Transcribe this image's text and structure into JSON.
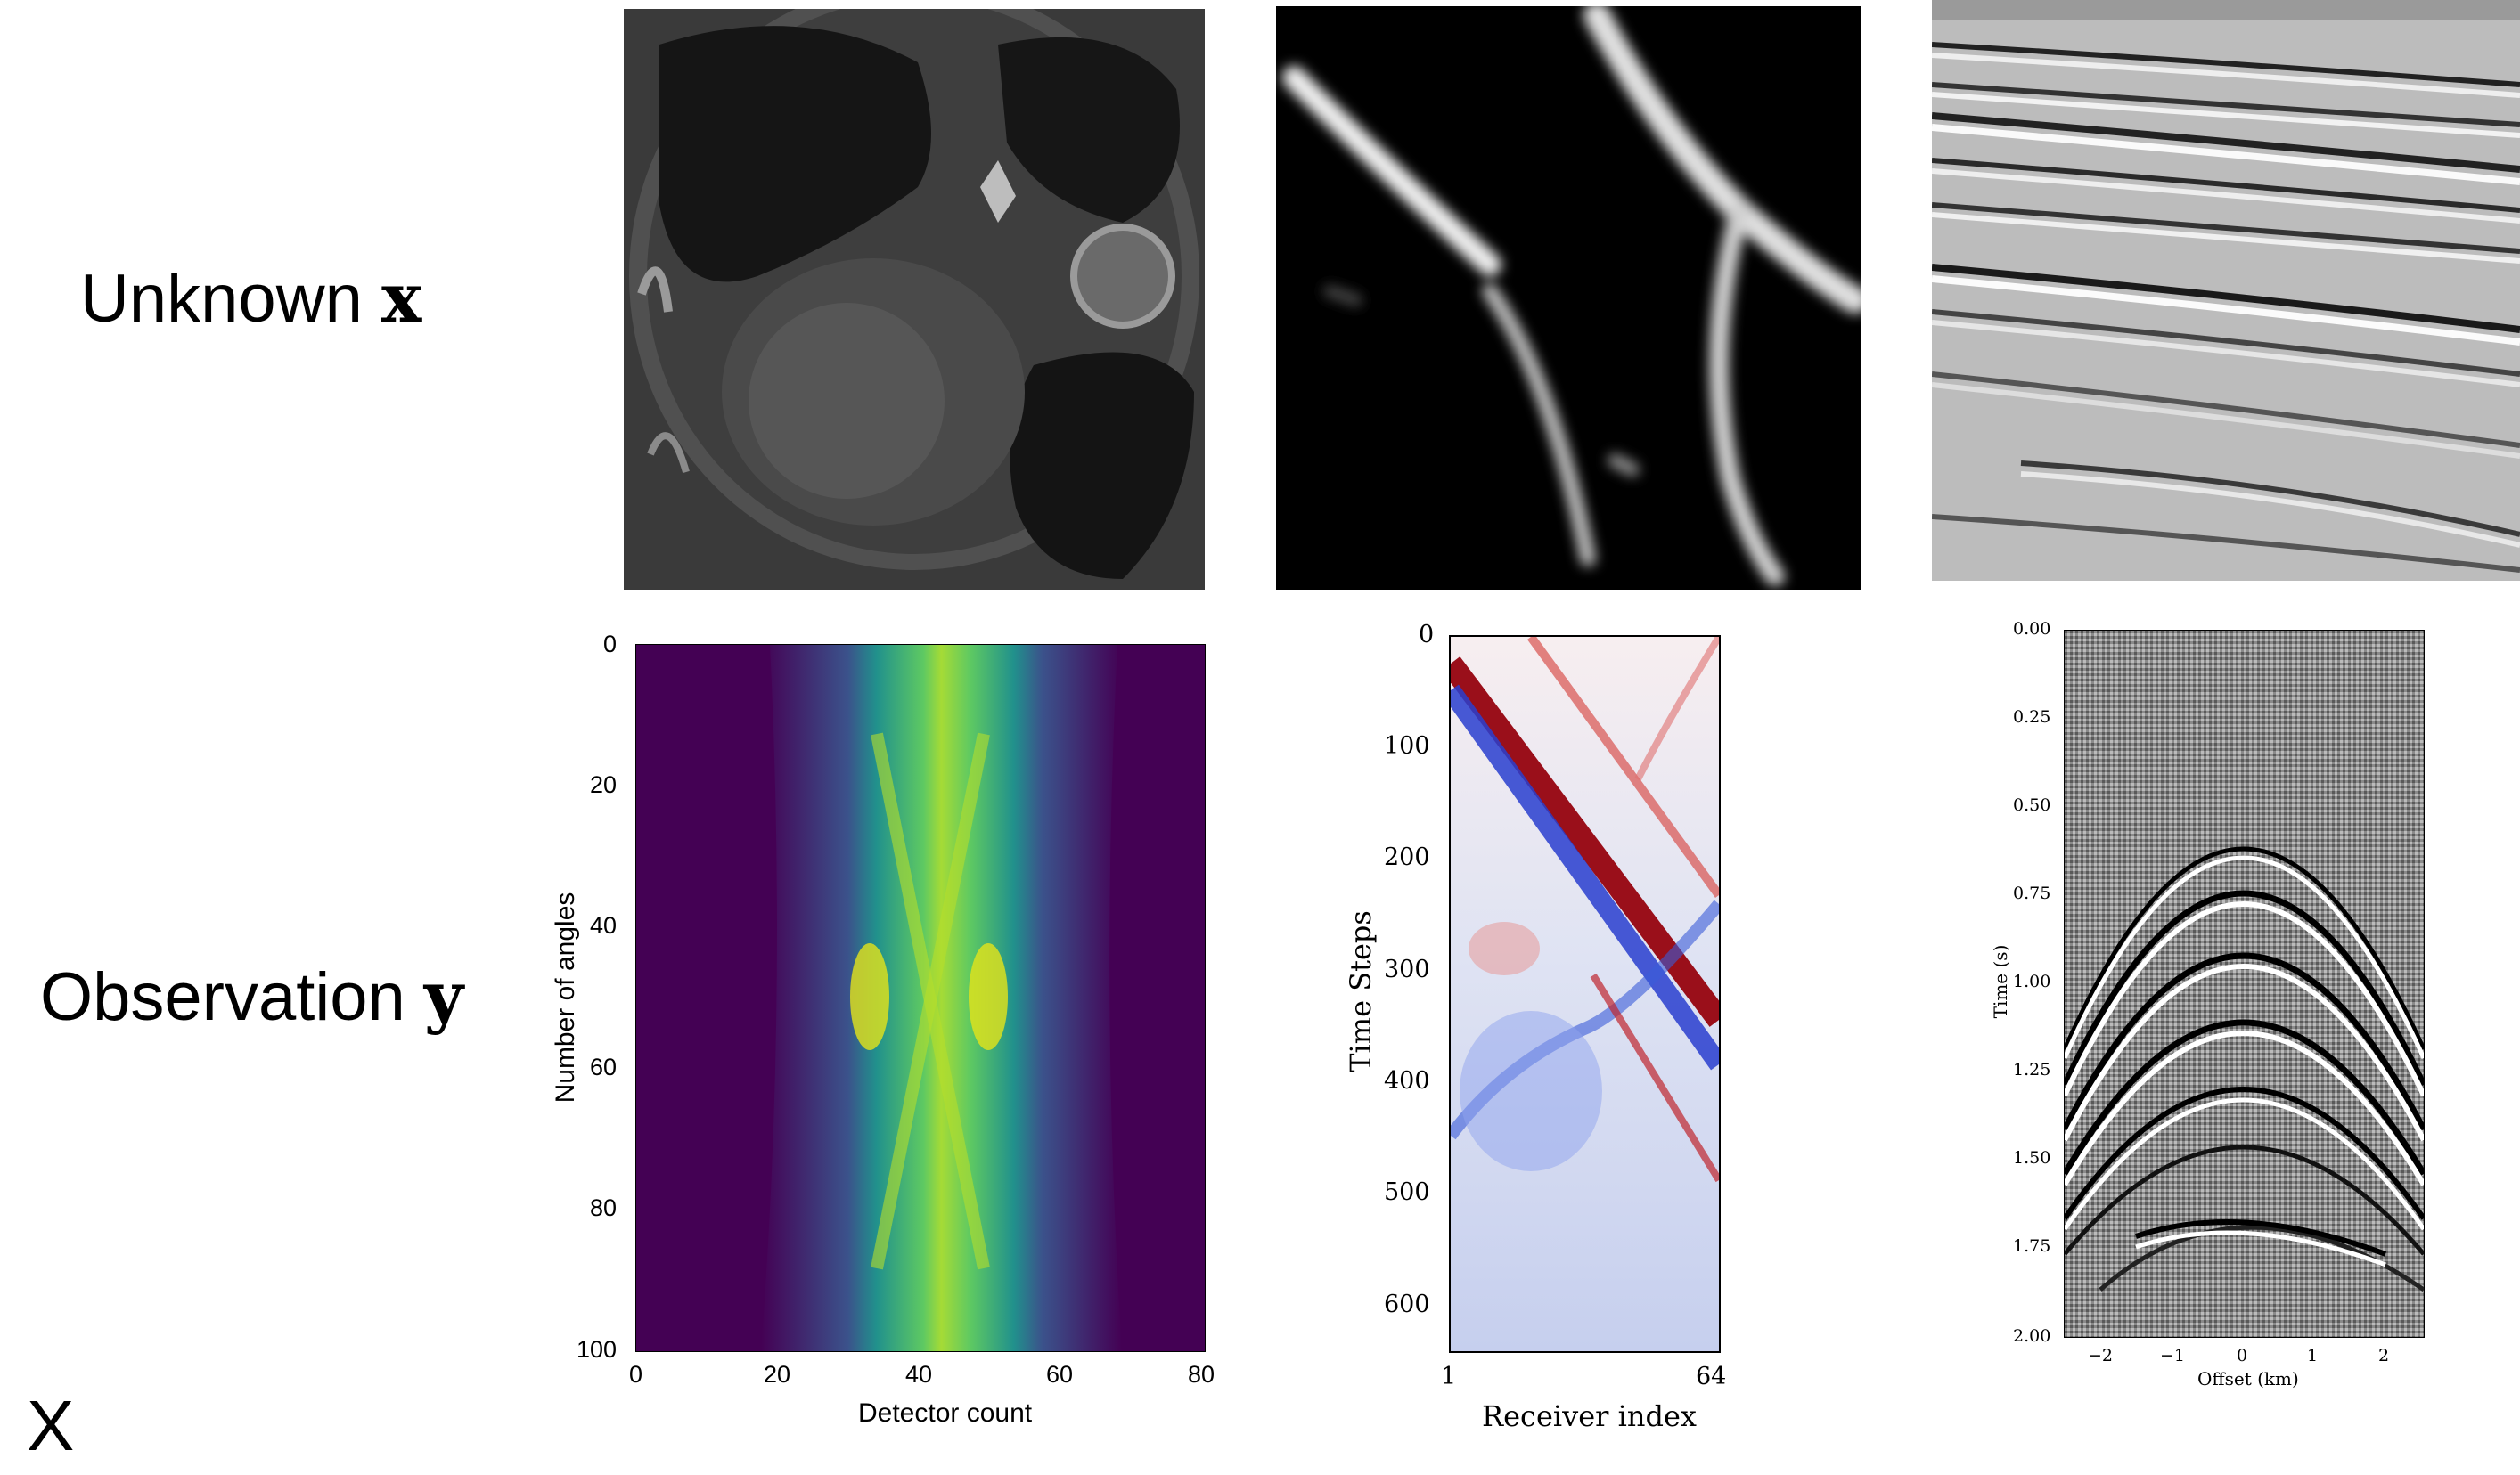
{
  "labels": {
    "unknown_text": "Unknown ",
    "unknown_var": "x",
    "observation_text": "Observation ",
    "observation_var": "y",
    "corner_mark": "X"
  },
  "panels": {
    "ct_image": {
      "icon": "ct-scan-image"
    },
    "vessel_image": {
      "icon": "vessel-image"
    },
    "seismic_image": {
      "icon": "seismic-velocity-image"
    },
    "sinogram": {
      "ylabel": "Number of angles",
      "xlabel": "Detector count",
      "yticks": [
        "0",
        "20",
        "40",
        "60",
        "80",
        "100"
      ],
      "xticks": [
        "0",
        "20",
        "40",
        "60",
        "80"
      ]
    },
    "timeseries": {
      "ylabel": "Time Steps",
      "xlabel": "Receiver index",
      "yticks": [
        "0",
        "100",
        "200",
        "300",
        "400",
        "500",
        "600"
      ],
      "xticks": [
        "1",
        "64"
      ]
    },
    "shot_gather": {
      "ylabel": "Time (s)",
      "xlabel": "Offset (km)",
      "yticks": [
        "0.00",
        "0.25",
        "0.50",
        "0.75",
        "1.00",
        "1.25",
        "1.50",
        "1.75",
        "2.00"
      ],
      "xticks": [
        "−2",
        "−1",
        "0",
        "1",
        "2"
      ]
    }
  },
  "colors": {
    "viridis_dark": "#440154",
    "viridis_mid": "#21918c",
    "viridis_bright": "#fde725",
    "red": "#b2182b",
    "blue": "#2166ac"
  }
}
